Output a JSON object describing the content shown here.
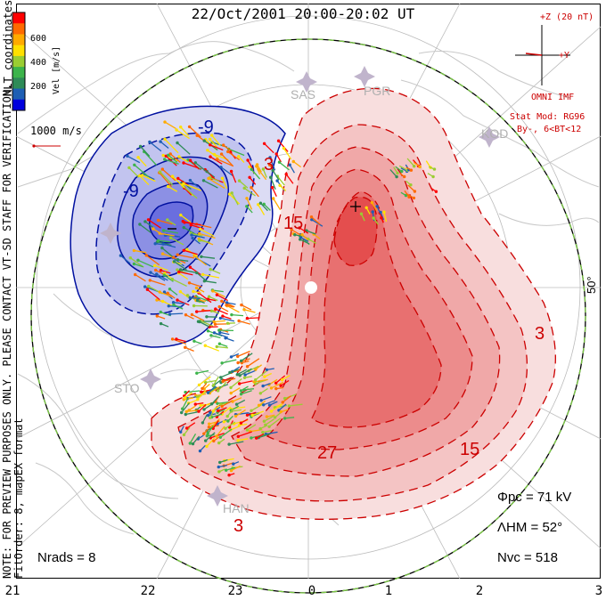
{
  "title": "22/Oct/2001 20:00-20:02 UT",
  "mlt_labels": [
    "21",
    "22",
    "23",
    "0",
    "1",
    "2",
    "3"
  ],
  "side_note_line1": "NOTE: FOR PREVIEW PURPOSES ONLY. PLEASE CONTACT VT-SD STAFF FOR VERIFICATION.",
  "side_note_line2": "FitOrder: 8, mapEX format",
  "coord_label": "MLT coordinates",
  "velocity_ref": "1000 m/s",
  "colorbar": {
    "title": "Vel [m/s]",
    "ticks": [
      "600",
      "400",
      "200"
    ],
    "colors": [
      "#ff0000",
      "#ff6a00",
      "#ffaa00",
      "#ffe000",
      "#9acd32",
      "#3cb44b",
      "#2e8b57",
      "#1e5fb4",
      "#0000dd"
    ]
  },
  "imf": {
    "scale": "+Z (20 nT)",
    "y_label": "+Y",
    "source": "OMNI IMF",
    "model": "Stat Mod: RG96",
    "condition": "By-, 6<BT<12"
  },
  "stations": [
    "SAS",
    "PGR",
    "KOD",
    "STO",
    "HAN"
  ],
  "contour_labels": [
    "-9",
    "-9",
    "3",
    "15",
    "27",
    "15",
    "3",
    "3"
  ],
  "lat_label": "50°",
  "stats": {
    "phi_pc": "Φpc = 71 kV",
    "lambda_hm": "ΛHM = 52°",
    "n_vc": "Nvc = 518",
    "n_rads": "Nrads = 8"
  },
  "colors": {
    "negative_fill": "#9aa0e8",
    "positive_fill": "#f08080",
    "negative_line": "#0010a0",
    "positive_line": "#cc0000",
    "coast": "#c8c8c8",
    "grid": "#bbbbbb"
  }
}
